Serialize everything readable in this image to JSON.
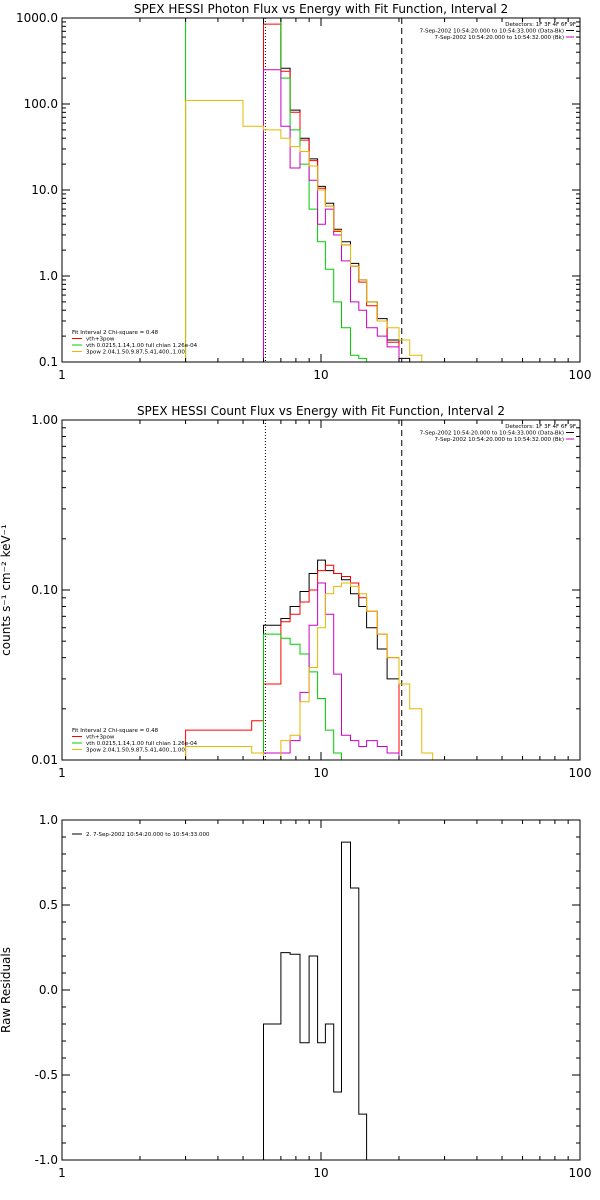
{
  "chart_data": [
    {
      "id": "photon",
      "type": "line",
      "title": "SPEX HESSI Photon Flux vs Energy with Fit Function, Interval 2",
      "xlabel": "",
      "ylabel": "",
      "xscale": "log",
      "yscale": "log",
      "xlim": [
        1,
        100
      ],
      "ylim": [
        0.1,
        1000
      ],
      "xticks": [
        {
          "v": 1,
          "label": "1"
        },
        {
          "v": 10,
          "label": "10"
        },
        {
          "v": 100,
          "label": "100"
        }
      ],
      "yticks": [
        {
          "v": 0.1,
          "label": "0.1"
        },
        {
          "v": 1,
          "label": "1.0"
        },
        {
          "v": 10,
          "label": "10.0"
        },
        {
          "v": 100,
          "label": "100.0"
        },
        {
          "v": 1000,
          "label": "1000.0"
        }
      ],
      "vlines": [
        {
          "x": 6.1,
          "style": "dotted",
          "color": "#000000"
        },
        {
          "x": 20.5,
          "style": "dashed",
          "color": "#000000"
        }
      ],
      "header_text": [
        "Detectors: 1F 3F 4F 6F 9F",
        "7-Sep-2002 10:54:20.000 to 10:54:33.000 (Data-Bk)",
        "7-Sep-2002 10:54:20.000 to 10:54:32.000 (Bk)"
      ],
      "legend_text": [
        "Fit Interval 2   Chi-square = 0.48",
        "vth+3pow",
        "vth 0.0215,1.14,1.00  full chian 1.26e-04",
        "3pow 2.04,1.50,9.87,5.41,400.,1.00"
      ],
      "legend_colors": [
        "#ff0000",
        "#00cc00",
        "#e6b800"
      ],
      "series": [
        {
          "name": "7-Sep-2002 10:54:20.000 to 10:54:33.000 (Data-Bk)",
          "color": "#000000",
          "bins": [
            6,
            7,
            7.6,
            8.3,
            9,
            9.7,
            10.4,
            11.2,
            12,
            13,
            14,
            15,
            16.5,
            18,
            20,
            22
          ],
          "values": [
            1000,
            260,
            85,
            40,
            23,
            11,
            7,
            3.5,
            2.5,
            1.4,
            0.9,
            0.5,
            0.32,
            0.18,
            0.11
          ]
        },
        {
          "name": "vth+3pow",
          "color": "#ff0000",
          "bins": [
            6,
            7,
            7.6,
            8.3,
            9,
            9.7,
            10.4,
            11.2,
            12,
            13,
            14,
            15,
            16.5,
            18,
            20,
            22
          ],
          "values": [
            850,
            240,
            80,
            38,
            22,
            10.5,
            6.5,
            3.3,
            2.3,
            1.3,
            0.85,
            0.45,
            0.3,
            0.17,
            0.1
          ]
        },
        {
          "name": "vth 0.0215,1.14,1.00  full chian 1.26e-04",
          "color": "#00cc00",
          "bins": [
            3,
            6,
            7,
            7.6,
            8.3,
            9,
            9.7,
            10.4,
            11.2,
            12,
            13,
            14,
            15,
            16
          ],
          "values": [
            1000,
            1000,
            200,
            50,
            20,
            6,
            2.5,
            1.2,
            0.5,
            0.25,
            0.12,
            0.11,
            0.1
          ]
        },
        {
          "name": "7-Sep-2002 10:54:20.000 to 10:54:32.000 (Bk)",
          "color": "#cc00cc",
          "bins": [
            6,
            7,
            7.6,
            8.3,
            9,
            9.7,
            10.4,
            11.2,
            12,
            13,
            14,
            15,
            16.5,
            18,
            20
          ],
          "values": [
            250,
            55,
            18,
            28,
            13,
            4,
            6,
            3,
            1.5,
            0.5,
            0.4,
            0.25,
            0.2,
            0.15
          ]
        },
        {
          "name": "3pow 2.04,1.50,9.87,5.41,400.,1.00",
          "color": "#e6b800",
          "bins": [
            3,
            5,
            6,
            7,
            7.6,
            8.3,
            9,
            9.7,
            10.4,
            11.2,
            12,
            13,
            14,
            15,
            16.5,
            18,
            20,
            22,
            24.5,
            27
          ],
          "values": [
            110,
            55,
            50,
            40,
            32,
            28,
            19,
            10,
            6.5,
            3.4,
            2.3,
            1.3,
            0.9,
            0.5,
            0.3,
            0.25,
            0.18,
            0.12,
            0.1
          ]
        }
      ]
    },
    {
      "id": "count",
      "type": "line",
      "title": "SPEX HESSI Count Flux vs Energy with Fit Function, Interval 2",
      "xlabel": "",
      "ylabel": "counts s⁻¹ cm⁻² keV⁻¹",
      "xscale": "log",
      "yscale": "log",
      "xlim": [
        1,
        100
      ],
      "ylim": [
        0.01,
        1.0
      ],
      "xticks": [
        {
          "v": 1,
          "label": "1"
        },
        {
          "v": 10,
          "label": "10"
        },
        {
          "v": 100,
          "label": "100"
        }
      ],
      "yticks": [
        {
          "v": 0.01,
          "label": "0.01"
        },
        {
          "v": 0.1,
          "label": "0.10"
        },
        {
          "v": 1,
          "label": "1.00"
        }
      ],
      "vlines": [
        {
          "x": 6.1,
          "style": "dotted",
          "color": "#000000"
        },
        {
          "x": 20.5,
          "style": "dashed",
          "color": "#000000"
        }
      ],
      "header_text": [
        "Detectors: 1F 3F 4F 6F 9F",
        "7-Sep-2002 10:54:20.000 to 10:54:33.000 (Data-Bk)",
        "7-Sep-2002 10:54:20.000 to 10:54:32.000 (Bk)"
      ],
      "legend_text": [
        "Fit Interval 2   Chi-square = 0.48",
        "vth+3pow",
        "vth 0.0215,1.14,1.00  full chian 1.26e-04",
        "3pow 2.04,1.50,9.87,5.41,400.,1.00"
      ],
      "legend_colors": [
        "#ff0000",
        "#00cc00",
        "#e6b800"
      ],
      "series": [
        {
          "name": "7-Sep-2002 10:54:20.000 to 10:54:33.000 (Data-Bk)",
          "color": "#000000",
          "bins": [
            6,
            7,
            7.6,
            8.3,
            9,
            9.7,
            10.4,
            11.2,
            12,
            13,
            14,
            15,
            16.5,
            18,
            20
          ],
          "values": [
            0.062,
            0.068,
            0.08,
            0.098,
            0.125,
            0.15,
            0.13,
            0.125,
            0.115,
            0.095,
            0.08,
            0.06,
            0.045,
            0.03
          ]
        },
        {
          "name": "vth+3pow",
          "color": "#ff0000",
          "bins": [
            3,
            5.4,
            6,
            7,
            7.6,
            8.3,
            9,
            9.7,
            10.4,
            11.2,
            12,
            13,
            14,
            15,
            16.5,
            18,
            20
          ],
          "values": [
            0.015,
            0.017,
            0.028,
            0.065,
            0.072,
            0.085,
            0.1,
            0.13,
            0.14,
            0.125,
            0.12,
            0.11,
            0.09,
            0.075,
            0.055,
            0.04
          ]
        },
        {
          "name": "vth 0.0215,1.14,1.00  full chian 1.26e-04",
          "color": "#00cc00",
          "bins": [
            6,
            7,
            7.6,
            8.3,
            9,
            9.7,
            10.4,
            11.2,
            12,
            13
          ],
          "values": [
            0.055,
            0.052,
            0.048,
            0.042,
            0.033,
            0.023,
            0.015,
            0.011,
            0.01
          ]
        },
        {
          "name": "7-Sep-2002 10:54:20.000 to 10:54:32.000 (Bk)",
          "color": "#cc00cc",
          "bins": [
            6,
            7,
            7.6,
            8.3,
            9,
            9.7,
            10.4,
            11.2,
            12,
            13,
            14,
            15,
            16.5,
            18,
            20
          ],
          "values": [
            0.011,
            0.011,
            0.013,
            0.025,
            0.062,
            0.11,
            0.072,
            0.032,
            0.014,
            0.013,
            0.012,
            0.013,
            0.012,
            0.011
          ]
        },
        {
          "name": "3pow 2.04,1.50,9.87,5.41,400.,1.00",
          "color": "#e6b800",
          "bins": [
            3,
            5.4,
            6,
            7,
            7.6,
            8.3,
            9,
            9.7,
            10.4,
            11.2,
            12,
            13,
            14,
            15,
            16.5,
            18,
            20,
            22,
            24.5,
            27
          ],
          "values": [
            0.012,
            0.011,
            0.01,
            0.013,
            0.014,
            0.022,
            0.035,
            0.06,
            0.095,
            0.105,
            0.11,
            0.105,
            0.095,
            0.075,
            0.055,
            0.04,
            0.028,
            0.02,
            0.011
          ]
        }
      ]
    },
    {
      "id": "resid",
      "type": "line",
      "title": "",
      "xlabel": "",
      "ylabel": "Raw Residuals",
      "xscale": "log",
      "yscale": "linear",
      "xlim": [
        1,
        100
      ],
      "ylim": [
        -1.0,
        1.0
      ],
      "xticks": [
        {
          "v": 1,
          "label": "1"
        },
        {
          "v": 10,
          "label": "10"
        },
        {
          "v": 100,
          "label": "100"
        }
      ],
      "yticks": [
        {
          "v": -1.0,
          "label": "-1.0"
        },
        {
          "v": -0.5,
          "label": "-0.5"
        },
        {
          "v": 0.0,
          "label": "0.0"
        },
        {
          "v": 0.5,
          "label": "0.5"
        },
        {
          "v": 1.0,
          "label": "1.0"
        }
      ],
      "legend_text": [
        "2.  7-Sep-2002 10:54:20.000 to 10:54:33.000"
      ],
      "legend_colors": [
        "#000000"
      ],
      "series": [
        {
          "name": "2.  7-Sep-2002 10:54:20.000 to 10:54:33.000",
          "color": "#000000",
          "bins": [
            6,
            7,
            7.6,
            8.3,
            9,
            9.7,
            10.4,
            11.2,
            12,
            13,
            14,
            15,
            16.5,
            18,
            20
          ],
          "values": [
            -0.2,
            0.22,
            0.21,
            -0.31,
            0.2,
            -0.31,
            -0.2,
            -0.6,
            0.87,
            0.6,
            -0.73,
            -1.0,
            -1.0,
            -1.0
          ],
          "start_value": -1.0
        }
      ]
    }
  ]
}
